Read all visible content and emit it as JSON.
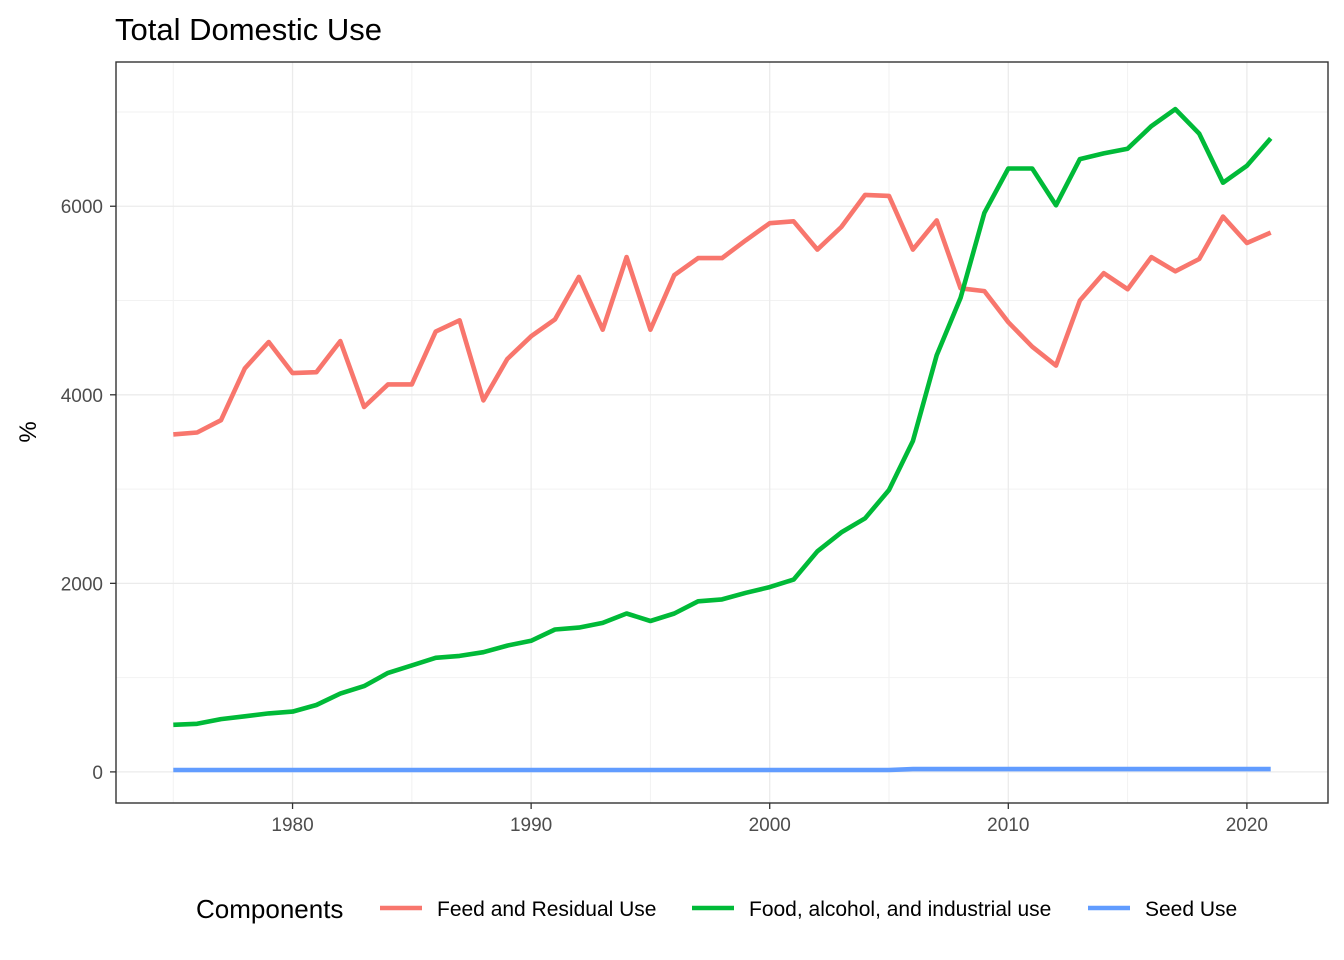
{
  "chart_data": {
    "type": "line",
    "title": "Total Domestic Use",
    "xlabel": "",
    "ylabel": "%",
    "xlim": [
      1972.6,
      2023.4
    ],
    "ylim": [
      -330,
      7530
    ],
    "x_ticks": [
      1980,
      1990,
      2000,
      2010,
      2020
    ],
    "y_ticks": [
      0,
      2000,
      4000,
      6000
    ],
    "grid": true,
    "legend": {
      "title": "Components",
      "position": "bottom"
    },
    "x": [
      1975,
      1976,
      1977,
      1978,
      1979,
      1980,
      1981,
      1982,
      1983,
      1984,
      1985,
      1986,
      1987,
      1988,
      1989,
      1990,
      1991,
      1992,
      1993,
      1994,
      1995,
      1996,
      1997,
      1998,
      1999,
      2000,
      2001,
      2002,
      2003,
      2004,
      2005,
      2006,
      2007,
      2008,
      2009,
      2010,
      2011,
      2012,
      2013,
      2014,
      2015,
      2016,
      2017,
      2018,
      2019,
      2020,
      2021
    ],
    "series": [
      {
        "name": "Feed and Residual Use",
        "color": "#F8766D",
        "values": [
          3580,
          3600,
          3730,
          4280,
          4560,
          4230,
          4240,
          4570,
          3870,
          4110,
          4110,
          4670,
          4790,
          3940,
          4380,
          4620,
          4800,
          5250,
          4690,
          5460,
          4690,
          5270,
          5450,
          5450,
          5640,
          5820,
          5840,
          5540,
          5780,
          6120,
          6110,
          5540,
          5850,
          5130,
          5100,
          4770,
          4510,
          4310,
          5000,
          5290,
          5120,
          5460,
          5310,
          5440,
          5890,
          5610,
          5720
        ]
      },
      {
        "name": "Food, alcohol, and industrial use",
        "color": "#00BA38",
        "values": [
          500,
          510,
          560,
          590,
          620,
          640,
          710,
          830,
          910,
          1050,
          1130,
          1210,
          1230,
          1270,
          1340,
          1390,
          1510,
          1530,
          1580,
          1680,
          1600,
          1680,
          1810,
          1830,
          1900,
          1960,
          2040,
          2340,
          2540,
          2690,
          2990,
          3510,
          4420,
          5030,
          5930,
          6400,
          6400,
          6010,
          6500,
          6560,
          6610,
          6850,
          7030,
          6770,
          6250,
          6430,
          6720
        ]
      },
      {
        "name": "Seed Use",
        "color": "#619CFF",
        "values": [
          20,
          20,
          20,
          20,
          20,
          20,
          20,
          20,
          20,
          20,
          20,
          20,
          20,
          20,
          20,
          20,
          20,
          20,
          20,
          20,
          20,
          20,
          20,
          20,
          20,
          20,
          20,
          20,
          20,
          20,
          20,
          30,
          30,
          30,
          30,
          30,
          30,
          30,
          30,
          30,
          30,
          30,
          30,
          30,
          30,
          30,
          30
        ]
      }
    ]
  }
}
